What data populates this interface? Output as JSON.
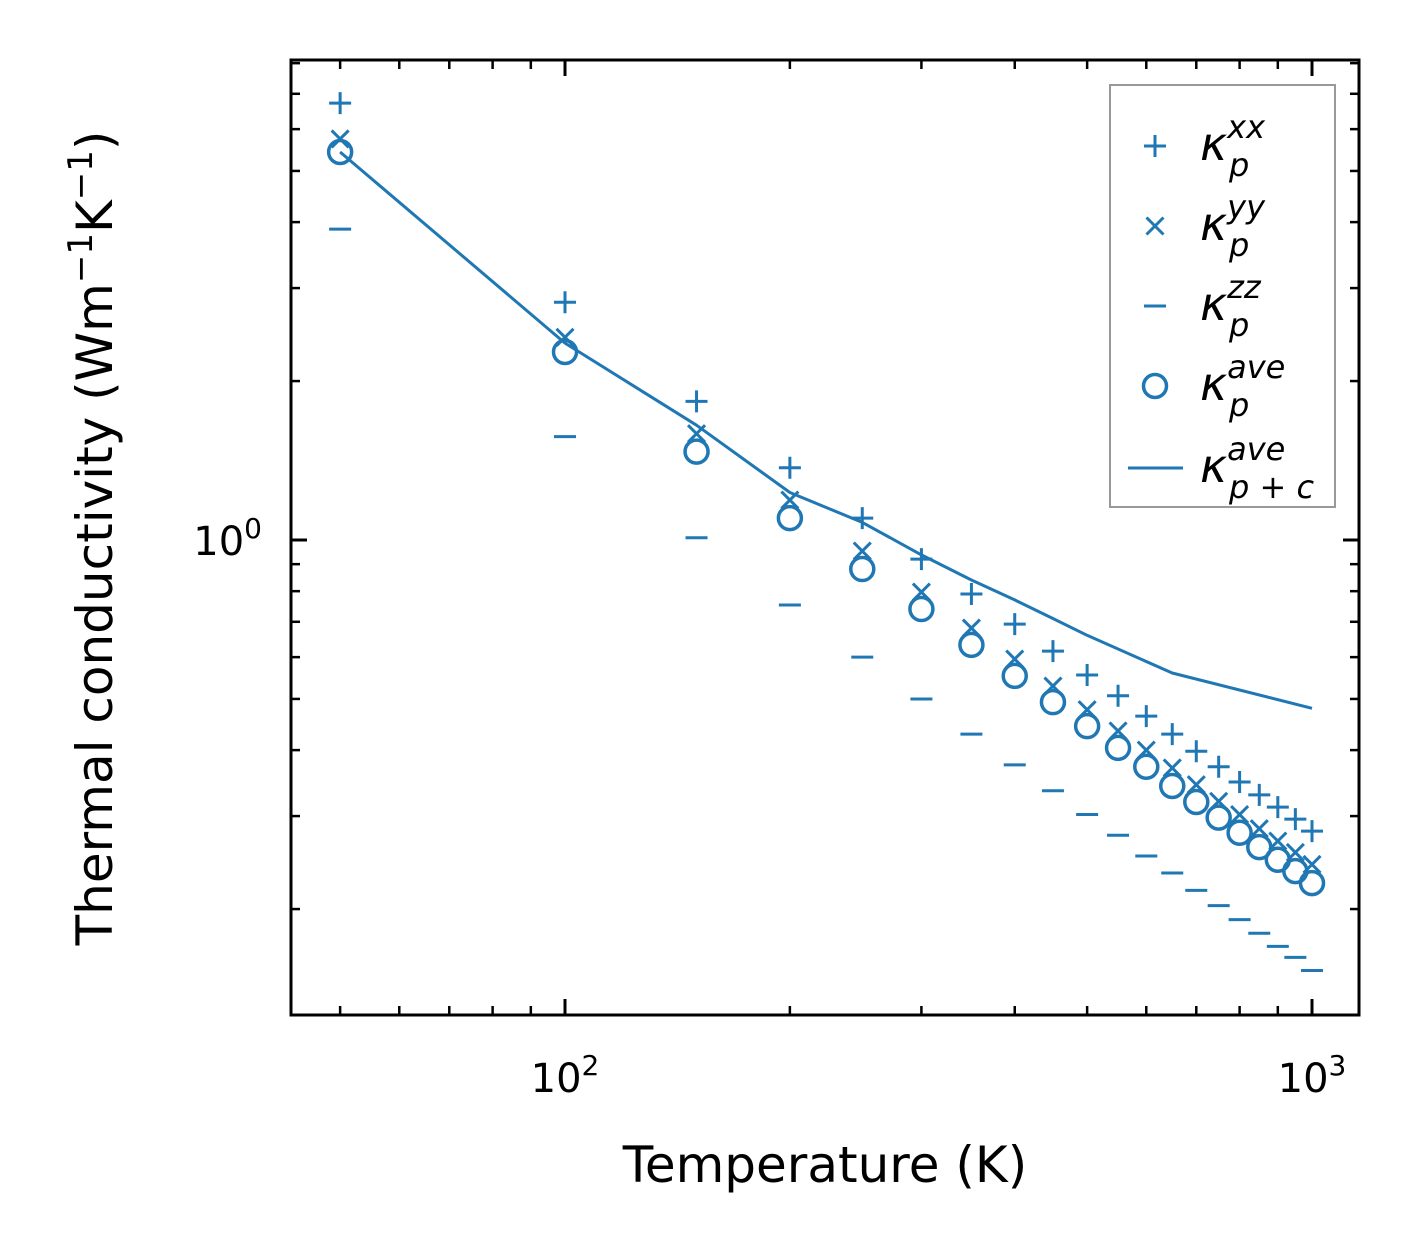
{
  "chart_data": {
    "type": "scatter",
    "xscale": "log",
    "yscale": "log",
    "xlabel": "Temperature (K)",
    "ylabel": {
      "prefix": "Thermal conductivity (Wm",
      "exp1": "−1",
      "mid": "K",
      "exp2": "−1",
      "suffix": ")"
    },
    "xlim": [
      43,
      1156
    ],
    "ylim": [
      0.126,
      8.1
    ],
    "x_ticks": [
      {
        "base": "10",
        "exp": "2",
        "value": 100
      },
      {
        "base": "10",
        "exp": "3",
        "value": 1000
      }
    ],
    "y_ticks": [
      {
        "base": "10",
        "exp": "0",
        "value": 1
      }
    ],
    "grid": false,
    "legend_position": "top-right",
    "color": "#1f77b4",
    "x": [
      50,
      100,
      150,
      200,
      250,
      300,
      350,
      400,
      450,
      500,
      550,
      600,
      650,
      700,
      750,
      800,
      850,
      900,
      950,
      1000
    ],
    "series": [
      {
        "name": "kappa_p^xx",
        "marker": "plus",
        "label": {
          "sym": "κ",
          "sub": "p",
          "sup": "xx"
        },
        "values": [
          6.72,
          2.82,
          1.83,
          1.37,
          1.1,
          0.92,
          0.79,
          0.693,
          0.616,
          0.555,
          0.507,
          0.464,
          0.429,
          0.398,
          0.372,
          0.348,
          0.329,
          0.312,
          0.296,
          0.281
        ]
      },
      {
        "name": "kappa_p^yy",
        "marker": "cross",
        "label": {
          "sym": "κ",
          "sub": "p",
          "sup": "yy"
        },
        "values": [
          5.75,
          2.42,
          1.59,
          1.19,
          0.953,
          0.797,
          0.681,
          0.595,
          0.529,
          0.477,
          0.435,
          0.4,
          0.37,
          0.344,
          0.32,
          0.302,
          0.284,
          0.269,
          0.256,
          0.243
        ]
      },
      {
        "name": "kappa_p^zz",
        "marker": "hline",
        "label": {
          "sym": "κ",
          "sub": "p",
          "sup": "zz"
        },
        "values": [
          3.88,
          1.57,
          1.01,
          0.753,
          0.6,
          0.5,
          0.429,
          0.375,
          0.335,
          0.302,
          0.276,
          0.252,
          0.234,
          0.217,
          0.203,
          0.191,
          0.18,
          0.17,
          0.162,
          0.153
        ]
      },
      {
        "name": "kappa_p^ave",
        "marker": "circle",
        "label": {
          "sym": "κ",
          "sub": "p",
          "sup": "ave"
        },
        "values": [
          5.43,
          2.27,
          1.47,
          1.1,
          0.881,
          0.74,
          0.633,
          0.553,
          0.493,
          0.444,
          0.404,
          0.372,
          0.342,
          0.319,
          0.298,
          0.279,
          0.262,
          0.248,
          0.236,
          0.224
        ]
      },
      {
        "name": "kappa_p+c^ave",
        "marker": "line",
        "label": {
          "sym": "κ",
          "sub": "p + c",
          "sup": "ave"
        },
        "x": [
          50,
          100,
          150,
          200,
          250,
          300,
          350,
          400,
          450,
          500,
          650,
          1000
        ],
        "values": [
          5.43,
          2.36,
          1.65,
          1.23,
          1.08,
          0.937,
          0.84,
          0.77,
          0.71,
          0.66,
          0.56,
          0.48
        ]
      }
    ]
  }
}
